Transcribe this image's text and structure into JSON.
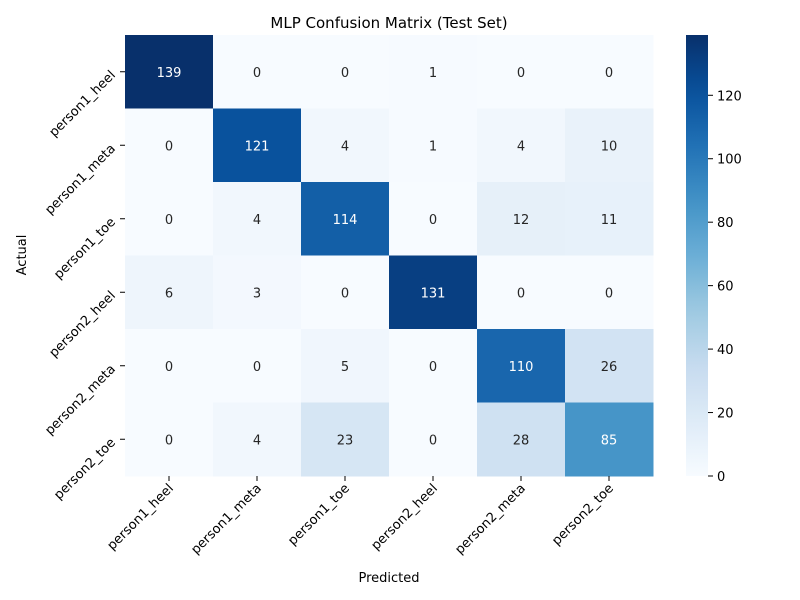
{
  "chart_data": {
    "type": "heatmap",
    "title": "MLP Confusion Matrix (Test Set)",
    "xlabel": "Predicted",
    "ylabel": "Actual",
    "x_categories": [
      "person1_heel",
      "person1_meta",
      "person1_toe",
      "person2_heel",
      "person2_meta",
      "person2_toe"
    ],
    "y_categories": [
      "person1_heel",
      "person1_meta",
      "person1_toe",
      "person2_heel",
      "person2_meta",
      "person2_toe"
    ],
    "values": [
      [
        139,
        0,
        0,
        1,
        0,
        0
      ],
      [
        0,
        121,
        4,
        1,
        4,
        10
      ],
      [
        0,
        4,
        114,
        0,
        12,
        11
      ],
      [
        6,
        3,
        0,
        131,
        0,
        0
      ],
      [
        0,
        0,
        5,
        0,
        110,
        26
      ],
      [
        0,
        4,
        23,
        0,
        28,
        85
      ]
    ],
    "colormap": "Blues",
    "vmin": 0,
    "vmax": 139,
    "colorbar_ticks": [
      0,
      20,
      40,
      60,
      80,
      100,
      120
    ],
    "grid": false
  }
}
